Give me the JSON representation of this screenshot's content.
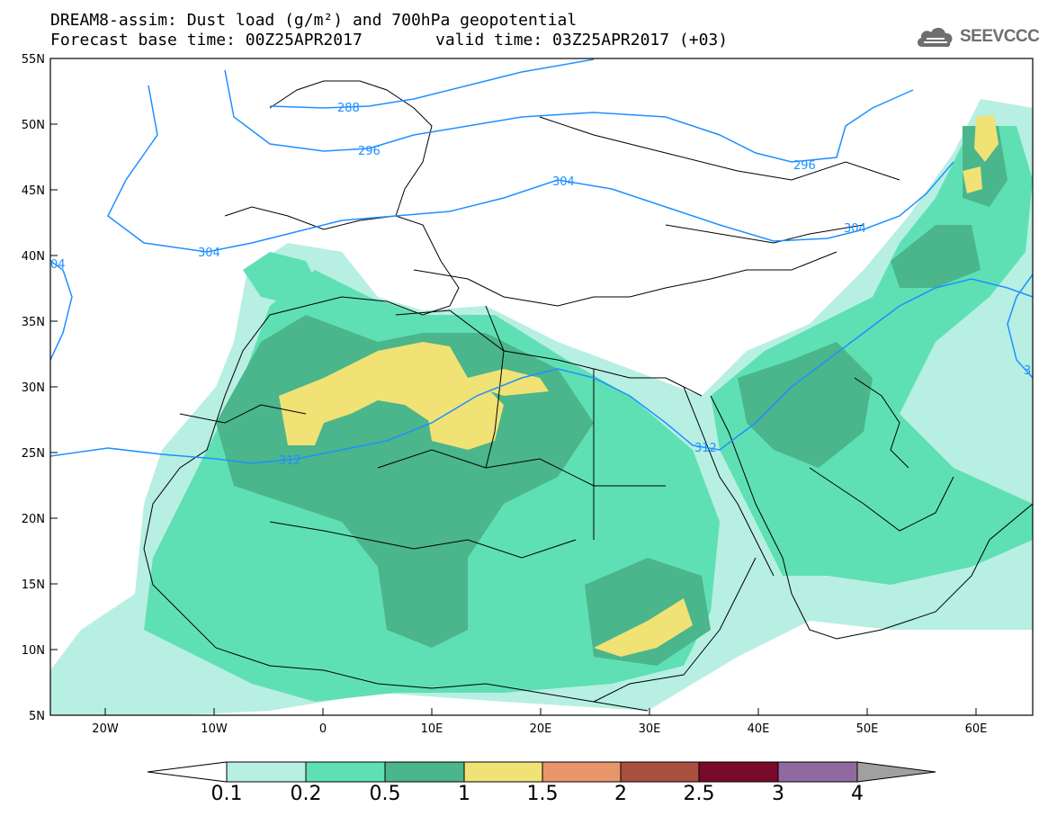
{
  "header": {
    "title_line1": "DREAM8-assim: Dust load (g/m²) and 700hPa geopotential",
    "base_time": "Forecast base time: 00Z25APR2017",
    "valid_time": "valid time: 03Z25APR2017 (+03)"
  },
  "logo": {
    "text": "SEEVCCC",
    "icon": "cloud-icon"
  },
  "map": {
    "lon_range": [
      -25,
      65
    ],
    "lat_range": [
      5,
      55
    ],
    "x_ticks": [
      "20W",
      "10W",
      "0",
      "10E",
      "20E",
      "30E",
      "40E",
      "50E",
      "60E"
    ],
    "y_ticks": [
      "55N",
      "50N",
      "45N",
      "40N",
      "35N",
      "30N",
      "25N",
      "20N",
      "15N",
      "10N",
      "5N"
    ],
    "contour_labels": [
      "288",
      "296",
      "296",
      "304",
      "304",
      "304",
      "312",
      "312",
      "04",
      "3"
    ],
    "contour_color": "#1e90ff"
  },
  "colorbar": {
    "labels": [
      "0.1",
      "0.2",
      "0.5",
      "1",
      "1.5",
      "2",
      "2.5",
      "3",
      "4"
    ],
    "colors": [
      "#b8efe3",
      "#5fe0b4",
      "#4bb58c",
      "#f0e274",
      "#e8956b",
      "#a84f40",
      "#7a0a2a",
      "#8f6aa0"
    ]
  }
}
